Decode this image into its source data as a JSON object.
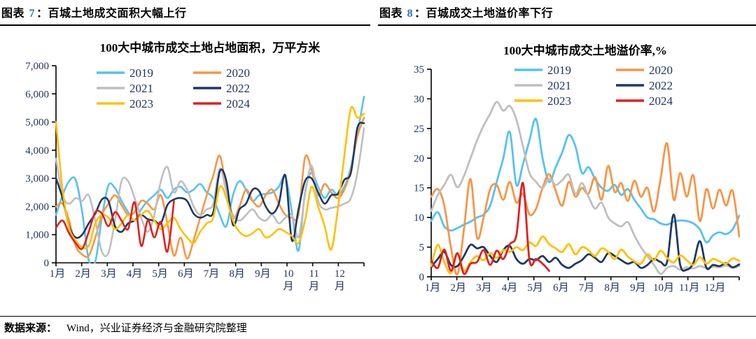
{
  "figures": [
    {
      "label": "图表",
      "number": "7",
      "separator": "：",
      "caption": "百城土地成交面积大幅上行"
    },
    {
      "label": "图表",
      "number": "8",
      "separator": "：",
      "caption": "百城成交土地溢价率下行"
    }
  ],
  "colors": {
    "figure_number": "#2E74B5",
    "axis_text": "#20355E",
    "axis_line": "#000000"
  },
  "footer": {
    "source_label": "数据来源：",
    "source_text": "Wind，兴业证券经济与金融研究院整理"
  },
  "chart_data": [
    {
      "type": "line",
      "title": "100大中城市成交土地占地面积，万平方米",
      "categories": [
        "1月",
        "2月",
        "3月",
        "4月",
        "5月",
        "6月",
        "7月",
        "8月",
        "9月",
        "10月",
        "11月",
        "12月"
      ],
      "points_per_month": 4,
      "ylim": [
        0,
        7000
      ],
      "y_step": 1000,
      "y_format": "thousands",
      "grid": false,
      "legend_position": "top-inside",
      "x_labels_wrapped_from": 9,
      "series": [
        {
          "name": "2019",
          "color": "#56C2EE",
          "values": [
            1700,
            2400,
            2900,
            2950,
            1800,
            100,
            50,
            1600,
            2750,
            2650,
            2200,
            1800,
            1500,
            1900,
            2200,
            2400,
            2600,
            2300,
            2600,
            2700,
            2500,
            2600,
            2800,
            2500,
            2300,
            1700,
            1300,
            2400,
            2900,
            2600,
            2200,
            2400,
            2450,
            2500,
            2700,
            3050,
            1800,
            430,
            2500,
            3200,
            2700,
            2300,
            2600,
            2400,
            2700,
            3400,
            4600,
            5900
          ]
        },
        {
          "name": "2020",
          "color": "#F79646",
          "values": [
            2000,
            2100,
            1500,
            600,
            300,
            250,
            900,
            1700,
            2100,
            2400,
            2050,
            1700,
            1800,
            2200,
            2100,
            1900,
            2400,
            1400,
            250,
            900,
            150,
            800,
            1600,
            2400,
            3100,
            3800,
            2600,
            1600,
            2000,
            2600,
            2200,
            2000,
            2400,
            2600,
            2100,
            1700,
            1600,
            1700,
            3740,
            3300,
            2400,
            2800,
            2500,
            2300,
            2600,
            3300,
            4500,
            5150
          ]
        },
        {
          "name": "2021",
          "color": "#BFBFBF",
          "values": [
            3700,
            2400,
            2100,
            2300,
            2200,
            2400,
            1500,
            400,
            350,
            1500,
            2900,
            2900,
            2300,
            1600,
            1100,
            1700,
            2900,
            3400,
            2500,
            2900,
            2600,
            2000,
            1700,
            1900,
            2100,
            3350,
            2500,
            1700,
            1500,
            1700,
            1900,
            1600,
            1500,
            1700,
            1400,
            1600,
            1700,
            900,
            2400,
            3450,
            2200,
            1900,
            1950,
            2000,
            2100,
            2300,
            3200,
            4780
          ]
        },
        {
          "name": "2022",
          "color": "#1F3864",
          "values": [
            3000,
            2300,
            1300,
            900,
            1000,
            1400,
            1750,
            2250,
            2200,
            1300,
            1100,
            1400,
            1500,
            1700,
            1550,
            1500,
            1400,
            2050,
            2250,
            2300,
            2200,
            1750,
            1600,
            1700,
            1800,
            3250,
            2900,
            1350,
            1900,
            2100,
            2600,
            2550,
            2000,
            1750,
            2100,
            3100,
            800,
            1900,
            2900,
            3000,
            2500,
            2100,
            2400,
            2450,
            2950,
            3200,
            4800,
            4960
          ]
        },
        {
          "name": "2023",
          "color": "#FFC000",
          "values": [
            5000,
            2600,
            1250,
            800,
            550,
            600,
            1400,
            1700,
            1600,
            1200,
            1400,
            1700,
            1500,
            1700,
            1850,
            1500,
            1200,
            1400,
            1600,
            1200,
            900,
            700,
            1100,
            1400,
            1600,
            2700,
            2300,
            1500,
            1100,
            950,
            1050,
            1200,
            900,
            1000,
            1200,
            1100,
            950,
            700,
            1500,
            2700,
            2000,
            1300,
            470,
            1900,
            3800,
            5480,
            5150,
            5300
          ]
        },
        {
          "name": "2024",
          "color": "#E02020",
          "values": [
            1250,
            1500,
            1050,
            700,
            500,
            1100,
            1800,
            1750,
            1300,
            1800,
            1500,
            1200,
            2150,
            600,
            1500,
            900,
            1450,
            400,
            2200
          ]
        }
      ]
    },
    {
      "type": "line",
      "title": "100大中城市成交土地溢价率,%",
      "categories": [
        "1月",
        "2月",
        "3月",
        "4月",
        "5月",
        "6月",
        "7月",
        "8月",
        "9月",
        "10月",
        "11月",
        "12月"
      ],
      "points_per_month": 4,
      "ylim": [
        0,
        35
      ],
      "y_step": 5,
      "y_format": "plain",
      "grid": false,
      "legend_position": "top-inside",
      "x_labels_wrapped_from": 99,
      "series": [
        {
          "name": "2019",
          "color": "#56C2EE",
          "values": [
            9.4,
            10.9,
            8.5,
            7.8,
            8.2,
            8.8,
            9.3,
            10,
            10.5,
            12,
            16,
            20,
            24.4,
            15.5,
            19,
            23,
            26.6,
            20,
            16,
            18.5,
            21,
            23.9,
            22,
            17.5,
            18.5,
            16.5,
            15,
            14.5,
            15.5,
            13.8,
            14.8,
            13,
            11.5,
            10,
            9.7,
            9,
            8.8,
            9.3,
            9.5,
            9.4,
            9,
            8,
            5.8,
            7,
            7.5,
            7.2,
            8,
            10.3
          ]
        },
        {
          "name": "2020",
          "color": "#F79646",
          "values": [
            13.5,
            14.8,
            12,
            5,
            0.4,
            8,
            16.5,
            6.6,
            10,
            14.8,
            15.5,
            13,
            16,
            12.5,
            14,
            10.5,
            11.5,
            15,
            17.3,
            14.5,
            12,
            16,
            13.5,
            15,
            14,
            16.8,
            13,
            18.7,
            14.3,
            15.8,
            12.8,
            16.2,
            13.5,
            15,
            11,
            16.5,
            22.5,
            13,
            17.5,
            13.5,
            17.1,
            9.4,
            14.8,
            11.5,
            14.7,
            12,
            14.5,
            6.8
          ]
        },
        {
          "name": "2021",
          "color": "#BFBFBF",
          "values": [
            11.1,
            13.8,
            15.5,
            17.2,
            15.1,
            17,
            20,
            23,
            25.5,
            27.5,
            29.5,
            28,
            28.8,
            26.5,
            22,
            17.5,
            16,
            15,
            16.5,
            15.5,
            16.3,
            17.2,
            14,
            15.8,
            13.5,
            11.5,
            12.5,
            10,
            9,
            8.5,
            9.2,
            7,
            5,
            3.5,
            2,
            0.5,
            1.5,
            1.8,
            1.2,
            1.6,
            1.4,
            1.8,
            1.5,
            1.7,
            1.6,
            1.9,
            1.5,
            1.8
          ]
        },
        {
          "name": "2022",
          "color": "#1F3864",
          "values": [
            1.6,
            3,
            4.2,
            2,
            1.8,
            3.5,
            5.4,
            4.8,
            5,
            3.5,
            2.5,
            4.5,
            5.2,
            3,
            2.2,
            3,
            2.8,
            3.5,
            2.5,
            3.2,
            2,
            1.5,
            2.2,
            2.8,
            3.8,
            3.2,
            2.5,
            4,
            3.5,
            2.8,
            2.2,
            2.5,
            1.5,
            2,
            3,
            2.5,
            2.5,
            10.5,
            2,
            1.2,
            2.3,
            6,
            1.5,
            2,
            1.8,
            2.3,
            1.6,
            2.1
          ]
        },
        {
          "name": "2023",
          "color": "#FFC000",
          "values": [
            1.8,
            5.4,
            2.5,
            0.6,
            3.8,
            1,
            2.5,
            3.5,
            2.8,
            4,
            3.2,
            4.5,
            4.2,
            5,
            4.5,
            5.8,
            5.2,
            6.8,
            5.5,
            4.8,
            4.2,
            5.5,
            3.8,
            5,
            4.5,
            3.5,
            4.8,
            4.2,
            3,
            4.6,
            3.4,
            2.6,
            2.2,
            3.8,
            2.8,
            4.4,
            3.2,
            2.4,
            3.6,
            2.8,
            2,
            3.3,
            2.2,
            3,
            2.6,
            2.2,
            3.1,
            2.7
          ]
        },
        {
          "name": "2024",
          "color": "#E02020",
          "values": [
            2.8,
            1.5,
            4.6,
            1,
            4,
            0.5,
            2.2,
            2.5,
            4.5,
            2,
            4.4,
            3,
            5.5,
            7,
            15.8,
            2.8,
            3,
            2.2,
            1
          ]
        }
      ]
    }
  ]
}
